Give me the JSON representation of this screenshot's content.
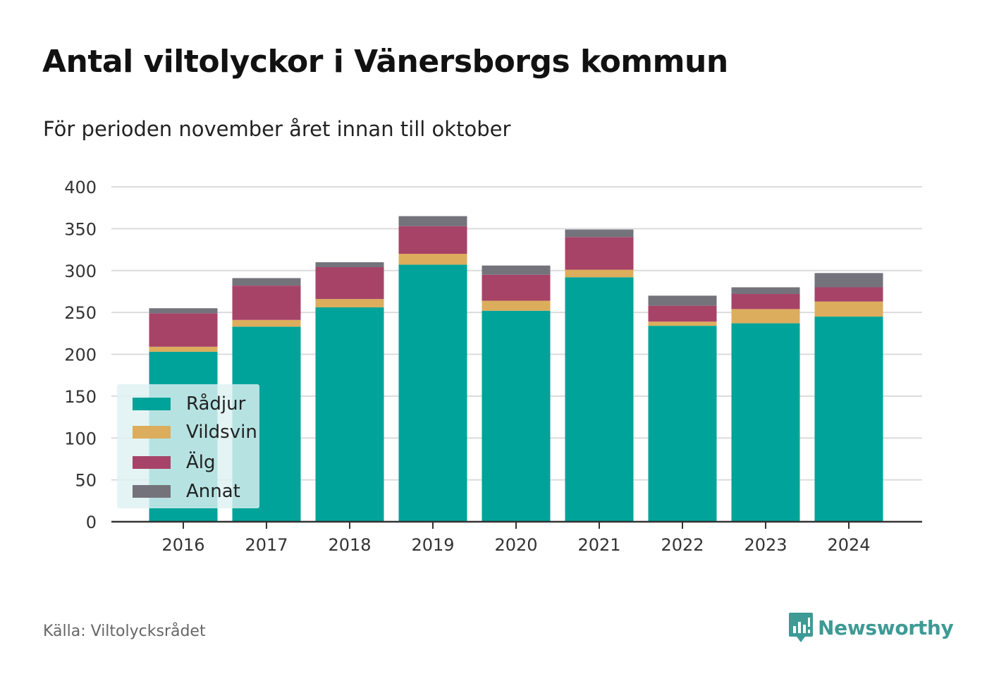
{
  "title": "Antal viltolyckor i Vänersborgs kommun",
  "subtitle": "För perioden november året innan till oktober",
  "source": "Källa: Viltolycksrådet",
  "brand": {
    "name": "Newsworthy",
    "icon": "newsworthy-logo-icon",
    "color": "#3e9a95"
  },
  "chart_data": {
    "type": "bar",
    "stacked": true,
    "categories": [
      "2016",
      "2017",
      "2018",
      "2019",
      "2020",
      "2021",
      "2022",
      "2023",
      "2024"
    ],
    "series": [
      {
        "name": "Rådjur",
        "color": "#00a39a",
        "values": [
          203,
          233,
          256,
          307,
          252,
          292,
          234,
          237,
          245
        ]
      },
      {
        "name": "Vildsvin",
        "color": "#dcad5c",
        "values": [
          6,
          8,
          10,
          13,
          12,
          9,
          5,
          17,
          18
        ]
      },
      {
        "name": "Älg",
        "color": "#a84368",
        "values": [
          40,
          41,
          38,
          33,
          31,
          39,
          19,
          18,
          17
        ]
      },
      {
        "name": "Annat",
        "color": "#74737b",
        "values": [
          6,
          9,
          6,
          12,
          11,
          9,
          12,
          8,
          17
        ]
      }
    ],
    "ylim": [
      0,
      400
    ],
    "yticks": [
      0,
      50,
      100,
      150,
      200,
      250,
      300,
      350,
      400
    ],
    "grid": true,
    "legend_position": "bottom-left"
  }
}
